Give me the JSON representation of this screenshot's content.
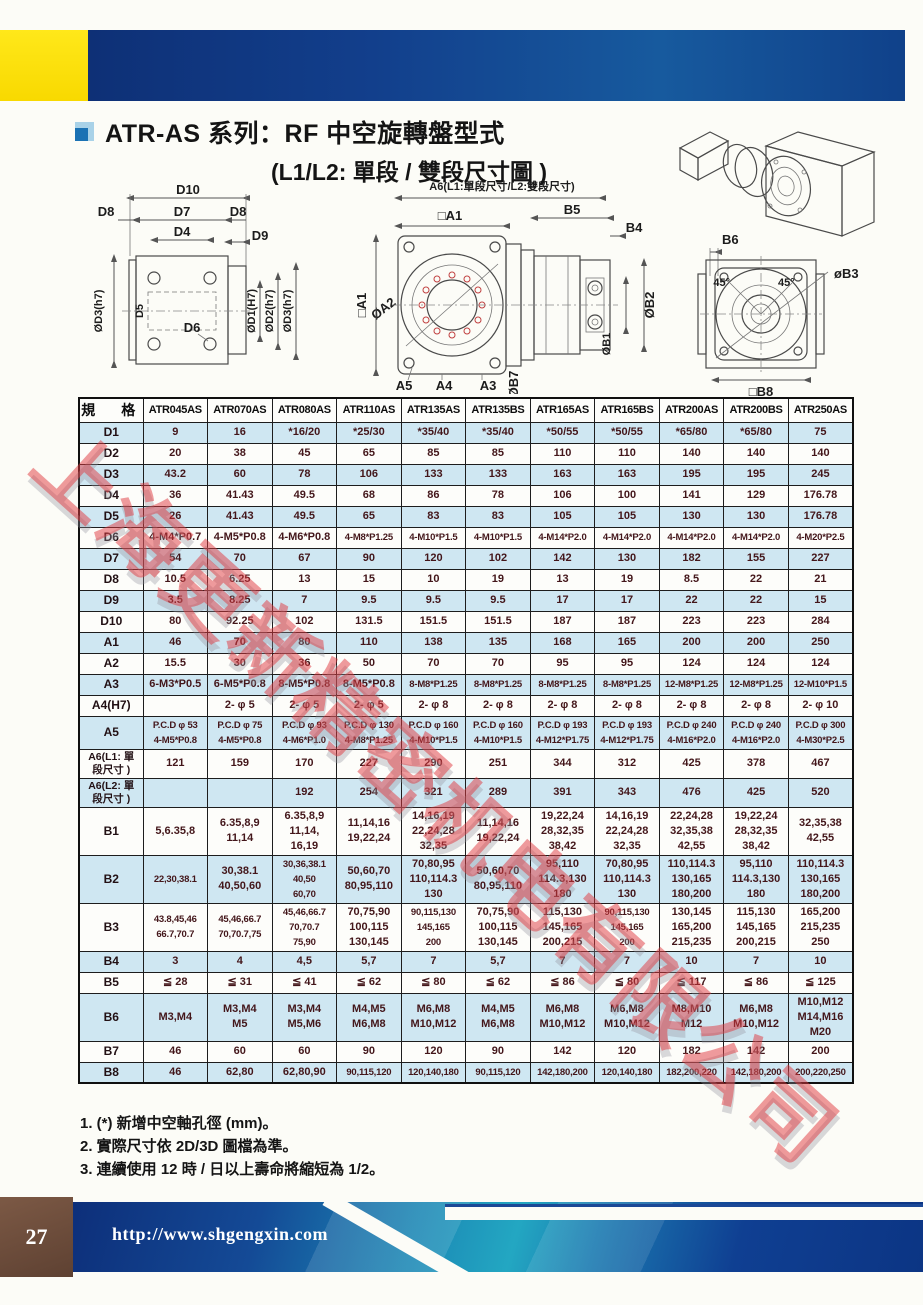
{
  "header": {
    "title_line1": "ATR-AS 系列：RF 中空旋轉盤型式",
    "title_line2": "(L1/L2: 單段 / 雙段尺寸圖 )"
  },
  "watermark": {
    "text": "上海更新精密机电有限公司"
  },
  "colors": {
    "banner_blue": "#123f8c",
    "banner_yellow": "#ffe10a",
    "row_blue": "#cfe7f2",
    "table_text": "#43161a",
    "footer_teal": "#23a7c2",
    "page_box_brown": "#6b4a39",
    "watermark_red": "#e0383e",
    "bullet_blue": "#1b72b4"
  },
  "drawings": {
    "left": {
      "d10": "D10",
      "d8l": "D8",
      "d7": "D7",
      "d8r": "D8",
      "d4": "D4",
      "d9": "D9",
      "dd3l": "ØD3(h7)",
      "d5": "D5",
      "d6": "D6",
      "dd1": "ØD1(H7)",
      "dd2": "ØD2(h7)",
      "dd3r": "ØD3(h7)"
    },
    "middle": {
      "top": "A6(L1:單段尺寸/L2:雙段尺寸)",
      "a1t": "□A1",
      "b5": "B5",
      "b4": "B4",
      "a1l": "□A1",
      "a2": "ØA2",
      "b2": "ØB2",
      "b1": "ØB1",
      "b7": "ØB7",
      "a5": "A5",
      "a4": "A4",
      "a3": "A3"
    },
    "right": {
      "b6": "B6",
      "a45l": "45°",
      "a45r": "45°",
      "b3": "øB3",
      "b8": "□B8"
    }
  },
  "table": {
    "header": [
      "規　格",
      "ATR045AS",
      "ATR070AS",
      "ATR080AS",
      "ATR110AS",
      "ATR135AS",
      "ATR135BS",
      "ATR165AS",
      "ATR165BS",
      "ATR200AS",
      "ATR200BS",
      "ATR250AS"
    ],
    "rows": [
      {
        "label": "D1",
        "cells": [
          "9",
          "16",
          "*16/20",
          "*25/30",
          "*35/40",
          "*35/40",
          "*50/55",
          "*50/55",
          "*65/80",
          "*65/80",
          "75"
        ]
      },
      {
        "label": "D2",
        "cells": [
          "20",
          "38",
          "45",
          "65",
          "85",
          "85",
          "110",
          "110",
          "140",
          "140",
          "140"
        ]
      },
      {
        "label": "D3",
        "cells": [
          "43.2",
          "60",
          "78",
          "106",
          "133",
          "133",
          "163",
          "163",
          "195",
          "195",
          "245"
        ]
      },
      {
        "label": "D4",
        "cells": [
          "36",
          "41.43",
          "49.5",
          "68",
          "86",
          "78",
          "106",
          "100",
          "141",
          "129",
          "176.78"
        ]
      },
      {
        "label": "D5",
        "cells": [
          "26",
          "41.43",
          "49.5",
          "65",
          "83",
          "83",
          "105",
          "105",
          "130",
          "130",
          "176.78"
        ]
      },
      {
        "label": "D6",
        "cells": [
          "4-M4*P0.7",
          "4-M5*P0.8",
          "4-M6*P0.8",
          "4-M8*P1.25",
          "4-M10*P1.5",
          "4-M10*P1.5",
          "4-M14*P2.0",
          "4-M14*P2.0",
          "4-M14*P2.0",
          "4-M14*P2.0",
          "4-M20*P2.5"
        ]
      },
      {
        "label": "D7",
        "cells": [
          "54",
          "70",
          "67",
          "90",
          "120",
          "102",
          "142",
          "130",
          "182",
          "155",
          "227"
        ]
      },
      {
        "label": "D8",
        "cells": [
          "10.5",
          "6.25",
          "13",
          "15",
          "10",
          "19",
          "13",
          "19",
          "8.5",
          "22",
          "21"
        ]
      },
      {
        "label": "D9",
        "cells": [
          "3.5",
          "8.25",
          "7",
          "9.5",
          "9.5",
          "9.5",
          "17",
          "17",
          "22",
          "22",
          "15"
        ]
      },
      {
        "label": "D10",
        "cells": [
          "80",
          "92.25",
          "102",
          "131.5",
          "151.5",
          "151.5",
          "187",
          "187",
          "223",
          "223",
          "284"
        ]
      },
      {
        "label": "A1",
        "cells": [
          "46",
          "70",
          "80",
          "110",
          "138",
          "135",
          "168",
          "165",
          "200",
          "200",
          "250"
        ]
      },
      {
        "label": "A2",
        "cells": [
          "15.5",
          "30",
          "36",
          "50",
          "70",
          "70",
          "95",
          "95",
          "124",
          "124",
          "124"
        ]
      },
      {
        "label": "A3",
        "cells": [
          "6-M3*P0.5",
          "6-M5*P0.8",
          "8-M5*P0.8",
          "8-M5*P0.8",
          "8-M8*P1.25",
          "8-M8*P1.25",
          "8-M8*P1.25",
          "8-M8*P1.25",
          "12-M8*P1.25",
          "12-M8*P1.25",
          "12-M10*P1.5"
        ]
      },
      {
        "label": "A4(H7)",
        "cells": [
          "",
          "2- φ 5",
          "2- φ 5",
          "2- φ 5",
          "2- φ 8",
          "2- φ 8",
          "2- φ 8",
          "2- φ 8",
          "2- φ 8",
          "2- φ 8",
          "2- φ 10"
        ]
      },
      {
        "label": "A5",
        "cells": [
          "P.C.D φ 53\n4-M5*P0.8",
          "P.C.D φ 75\n4-M5*P0.8",
          "P.C.D φ 93\n4-M6*P1.0",
          "P.C.D φ 130\n4-M8*P1.25",
          "P.C.D φ 160\n4-M10*P1.5",
          "P.C.D φ 160\n4-M10*P1.5",
          "P.C.D φ 193\n4-M12*P1.75",
          "P.C.D φ 193\n4-M12*P1.75",
          "P.C.D φ 240\n4-M16*P2.0",
          "P.C.D φ 240\n4-M16*P2.0",
          "P.C.D φ 300\n4-M30*P2.5"
        ]
      },
      {
        "label": "A6(L1: 單\n段尺寸 )",
        "cells": [
          "121",
          "159",
          "170",
          "227",
          "290",
          "251",
          "344",
          "312",
          "425",
          "378",
          "467"
        ]
      },
      {
        "label": "A6(L2: 單\n段尺寸 )",
        "cells": [
          "",
          "",
          "192",
          "254",
          "321",
          "289",
          "391",
          "343",
          "476",
          "425",
          "520"
        ]
      },
      {
        "label": "B1",
        "cells": [
          "5,6.35,8",
          "6.35,8,9\n11,14",
          "6.35,8,9\n11,14,\n16,19",
          "11,14,16\n19,22,24",
          "14,16,19\n22,24,28\n32,35",
          "11,14,16\n19,22,24",
          "19,22,24\n28,32,35\n38,42",
          "14,16,19\n22,24,28\n32,35",
          "22,24,28\n32,35,38\n42,55",
          "19,22,24\n28,32,35\n38,42",
          "32,35,38\n42,55"
        ]
      },
      {
        "label": "B2",
        "cells": [
          "22,30,38.1",
          "30,38.1\n40,50,60",
          "30,36,38.1\n40,50\n60,70",
          "50,60,70\n80,95,110",
          "70,80,95\n110,114.3\n130",
          "50,60,70\n80,95,110",
          "95,110\n114.3,130\n180",
          "70,80,95\n110,114.3\n130",
          "110,114.3\n130,165\n180,200",
          "95,110\n114.3,130\n180",
          "110,114.3\n130,165\n180,200"
        ]
      },
      {
        "label": "B3",
        "cells": [
          "43.8,45,46\n66.7,70.7",
          "45,46,66.7\n70,70.7,75",
          "45,46,66.7\n70,70.7\n75,90",
          "70,75,90\n100,115\n130,145",
          "90,115,130\n145,165\n200",
          "70,75,90\n100,115\n130,145",
          "115,130\n145,165\n200,215",
          "90,115,130\n145,165\n200",
          "130,145\n165,200\n215,235",
          "115,130\n145,165\n200,215",
          "165,200\n215,235\n250"
        ]
      },
      {
        "label": "B4",
        "cells": [
          "3",
          "4",
          "4,5",
          "5,7",
          "7",
          "5,7",
          "7",
          "7",
          "10",
          "7",
          "10"
        ]
      },
      {
        "label": "B5",
        "cells": [
          "≦ 28",
          "≦ 31",
          "≦ 41",
          "≦ 62",
          "≦ 80",
          "≦ 62",
          "≦ 86",
          "≦ 80",
          "≦ 117",
          "≦ 86",
          "≦ 125"
        ]
      },
      {
        "label": "B6",
        "cells": [
          "M3,M4",
          "M3,M4\nM5",
          "M3,M4\nM5,M6",
          "M4,M5\nM6,M8",
          "M6,M8\nM10,M12",
          "M4,M5\nM6,M8",
          "M6,M8\nM10,M12",
          "M6,M8\nM10,M12",
          "M8,M10\nM12",
          "M6,M8\nM10,M12",
          "M10,M12\nM14,M16\nM20"
        ]
      },
      {
        "label": "B7",
        "cells": [
          "46",
          "60",
          "60",
          "90",
          "120",
          "90",
          "142",
          "120",
          "182",
          "142",
          "200"
        ]
      },
      {
        "label": "B8",
        "cells": [
          "46",
          "62,80",
          "62,80,90",
          "90,115,120",
          "120,140,180",
          "90,115,120",
          "142,180,200",
          "120,140,180",
          "182,200,220",
          "142,180,200",
          "200,220,250"
        ]
      }
    ]
  },
  "notes": [
    "1. (*) 新增中空軸孔徑 (mm)。",
    "2. 實際尺寸依 2D/3D 圖檔為準。",
    "3. 連續使用 12 時 / 日以上壽命將縮短為 1/2。"
  ],
  "footer": {
    "page_number": "27",
    "url": "http://www.shgengxin.com"
  }
}
